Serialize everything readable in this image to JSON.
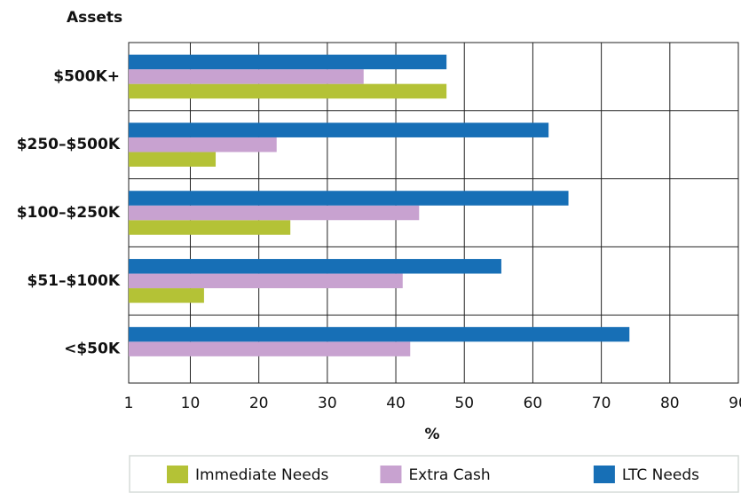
{
  "chart_data": {
    "type": "bar",
    "orientation": "horizontal",
    "title": "Assets",
    "x_label": "%",
    "categories": [
      "$500K+",
      "$250–$500K",
      "$100–$250K",
      "$51–$100K",
      "<$50K"
    ],
    "series": [
      {
        "name": "Immediate Needs",
        "color": "#b4c236",
        "values": [
          47.4,
          13.7,
          24.6,
          12,
          null
        ]
      },
      {
        "name": "Extra Cash",
        "color": "#c8a2d0",
        "values": [
          35.3,
          22.6,
          43.4,
          41.0,
          42.1
        ]
      },
      {
        "name": "LTC Needs",
        "color": "#176fb6",
        "values": [
          47.4,
          62.3,
          65.2,
          55.4,
          74.1
        ]
      }
    ],
    "xlim": [
      1,
      90
    ],
    "xticks": [
      1,
      10,
      20,
      30,
      40,
      50,
      60,
      70,
      80,
      90
    ],
    "grid": true
  }
}
